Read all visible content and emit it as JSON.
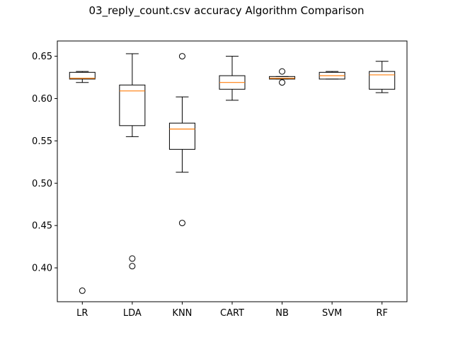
{
  "chart_data": {
    "type": "box",
    "title": "03_reply_count.csv accuracy Algorithm Comparison",
    "xlabel": "",
    "ylabel": "",
    "ylim": [
      0.36,
      0.668
    ],
    "yticks": [
      "0.40",
      "0.45",
      "0.50",
      "0.55",
      "0.60",
      "0.65"
    ],
    "grid": false,
    "legend": "none",
    "colors": {
      "box": "#000000",
      "median": "#ff7f0e",
      "background": "#ffffff"
    },
    "categories": [
      "LR",
      "LDA",
      "KNN",
      "CART",
      "NB",
      "SVM",
      "RF"
    ],
    "boxes": [
      {
        "label": "LR",
        "whisker_low": 0.619,
        "q1": 0.623,
        "median": 0.624,
        "q3": 0.631,
        "whisker_high": 0.632,
        "outliers": [
          0.373
        ]
      },
      {
        "label": "LDA",
        "whisker_low": 0.555,
        "q1": 0.568,
        "median": 0.609,
        "q3": 0.616,
        "whisker_high": 0.653,
        "outliers": [
          0.411,
          0.402
        ]
      },
      {
        "label": "KNN",
        "whisker_low": 0.513,
        "q1": 0.54,
        "median": 0.564,
        "q3": 0.571,
        "whisker_high": 0.602,
        "outliers": [
          0.65,
          0.453
        ]
      },
      {
        "label": "CART",
        "whisker_low": 0.598,
        "q1": 0.611,
        "median": 0.619,
        "q3": 0.627,
        "whisker_high": 0.65,
        "outliers": []
      },
      {
        "label": "NB",
        "whisker_low": 0.623,
        "q1": 0.623,
        "median": 0.624,
        "q3": 0.626,
        "whisker_high": 0.626,
        "outliers": [
          0.632,
          0.619
        ]
      },
      {
        "label": "SVM",
        "whisker_low": 0.623,
        "q1": 0.623,
        "median": 0.627,
        "q3": 0.631,
        "whisker_high": 0.632,
        "outliers": []
      },
      {
        "label": "RF",
        "whisker_low": 0.607,
        "q1": 0.611,
        "median": 0.628,
        "q3": 0.632,
        "whisker_high": 0.644,
        "outliers": []
      }
    ]
  }
}
